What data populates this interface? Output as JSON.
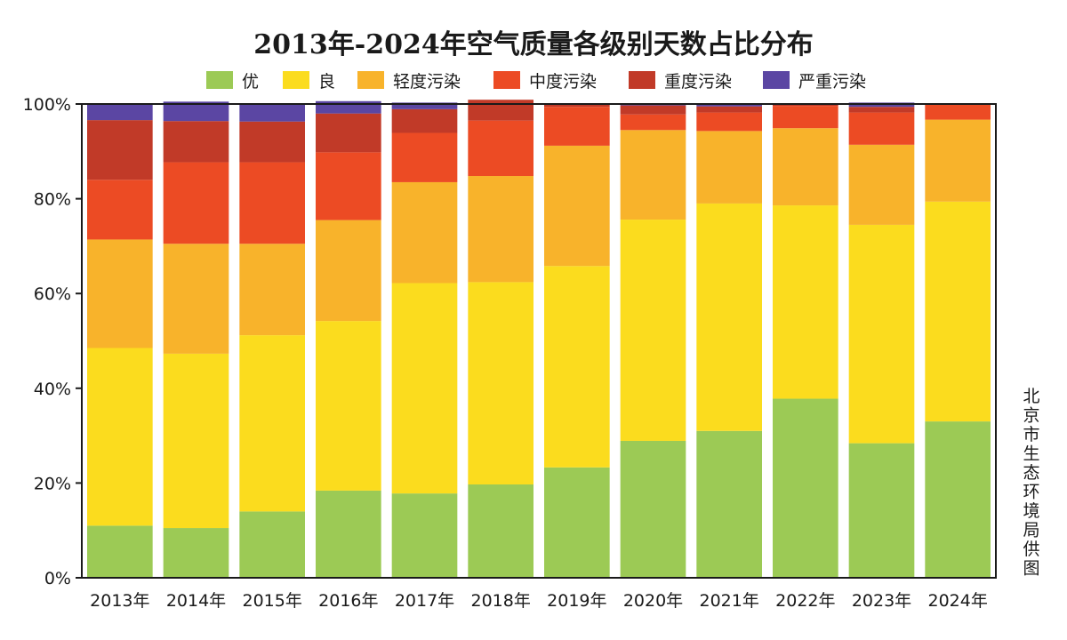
{
  "chart_data": {
    "type": "bar",
    "stacked": true,
    "title": "2013年-2024年空气质量各级别天数占比分布",
    "categories": [
      "2013年",
      "2014年",
      "2015年",
      "2016年",
      "2017年",
      "2018年",
      "2019年",
      "2020年",
      "2021年",
      "2022年",
      "2023年",
      "2024年"
    ],
    "ylim": [
      0,
      100
    ],
    "y_ticks": [
      "0%",
      "20%",
      "40%",
      "60%",
      "80%",
      "100%"
    ],
    "legend_position": "top",
    "grid": false,
    "source_note": "北京市生态环境局供图",
    "series": [
      {
        "name": "优",
        "color": "#9cca55",
        "values": [
          11,
          10.5,
          14,
          18.4,
          17.8,
          19.7,
          23.3,
          28.9,
          31,
          37.8,
          28.4,
          33
        ]
      },
      {
        "name": "良",
        "color": "#fbdc1e",
        "values": [
          37.5,
          36.8,
          37.2,
          35.8,
          44.4,
          42.7,
          42.5,
          46.7,
          48,
          40.8,
          46.1,
          46.4
        ]
      },
      {
        "name": "轻度污染",
        "color": "#f8b32b",
        "values": [
          22.9,
          23.2,
          19.3,
          21.3,
          21.3,
          22.4,
          25.4,
          18.9,
          15.3,
          16.3,
          16.9,
          17.3
        ]
      },
      {
        "name": "中度污染",
        "color": "#ec4b24",
        "values": [
          12.6,
          17.2,
          17.2,
          14.3,
          10.4,
          11.7,
          8.2,
          3.3,
          3.9,
          4.7,
          6.8,
          3.3
        ]
      },
      {
        "name": "重度污染",
        "color": "#c13a28",
        "values": [
          12.6,
          8.7,
          8.6,
          8.2,
          5,
          4.4,
          0.6,
          1.9,
          1.3,
          0.4,
          1.2,
          0
        ]
      },
      {
        "name": "严重污染",
        "color": "#5b46a3",
        "values": [
          3.3,
          4.1,
          3.8,
          2.6,
          1.4,
          0,
          0,
          0.3,
          0.5,
          0,
          0.9,
          0
        ]
      }
    ]
  },
  "colors": {
    "plot_border": "#1a1a1a",
    "bar_gap": "#ffffff"
  }
}
